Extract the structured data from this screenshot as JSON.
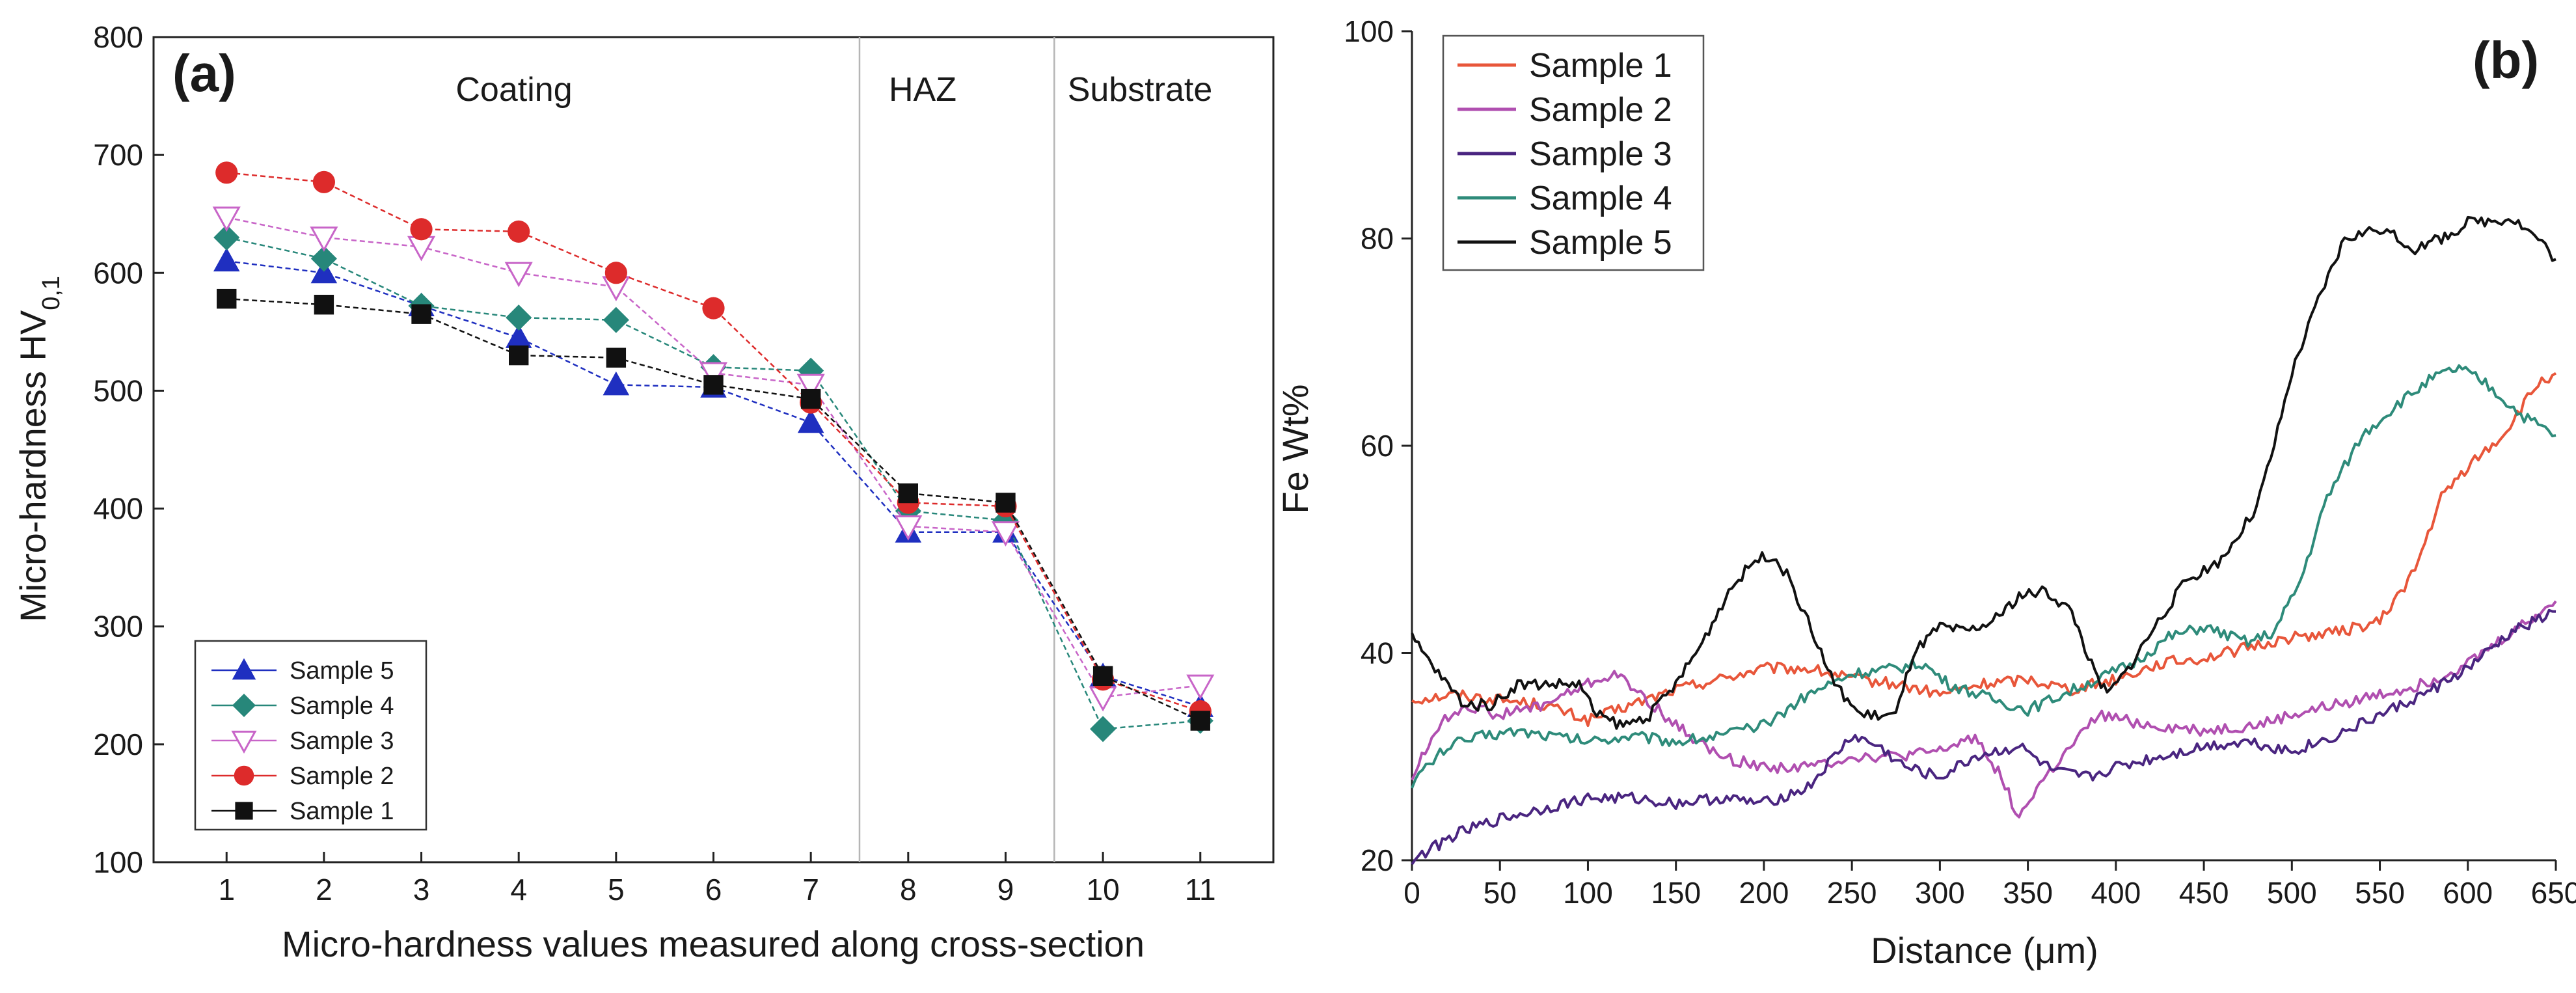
{
  "chart_data": [
    {
      "type": "line",
      "panel_label": "(a)",
      "xlabel": "Micro-hardness values measured along cross-section",
      "ylabel": "Micro-hardness HV",
      "ylabel_sub": "0,1",
      "x_ticks": [
        "1",
        "2",
        "3",
        "4",
        "5",
        "6",
        "7",
        "8",
        "9",
        "10",
        "11"
      ],
      "y_ticks": [
        "100",
        "200",
        "300",
        "400",
        "500",
        "600",
        "700",
        "800"
      ],
      "xlim": [
        0.25,
        11.75
      ],
      "ylim": [
        100,
        800
      ],
      "region_labels": [
        "Coating",
        "HAZ",
        "Substrate"
      ],
      "region_boundaries": [
        7.5,
        9.5
      ],
      "grid": false,
      "legend_position": "bottom-left",
      "x": [
        1,
        2,
        3,
        4,
        5,
        6,
        7,
        8,
        9,
        10,
        11
      ],
      "series": [
        {
          "name": "Sample 5",
          "marker": "triangle-up",
          "color": "#1f2fc0",
          "values": [
            610,
            600,
            572,
            545,
            505,
            503,
            473,
            380,
            380,
            258,
            232
          ]
        },
        {
          "name": "Sample 4",
          "marker": "diamond",
          "color": "#27877a",
          "values": [
            630,
            612,
            572,
            562,
            560,
            520,
            517,
            398,
            390,
            213,
            220
          ]
        },
        {
          "name": "Sample 3",
          "marker": "triangle-down-open",
          "color": "#c865c8",
          "values": [
            647,
            630,
            622,
            600,
            588,
            515,
            505,
            385,
            380,
            240,
            250
          ]
        },
        {
          "name": "Sample 2",
          "marker": "circle",
          "color": "#dd2b2b",
          "values": [
            685,
            677,
            637,
            635,
            600,
            570,
            490,
            405,
            402,
            255,
            228
          ]
        },
        {
          "name": "Sample 1",
          "marker": "square",
          "color": "#111111",
          "values": [
            578,
            573,
            565,
            530,
            528,
            505,
            493,
            413,
            405,
            258,
            220
          ]
        }
      ]
    },
    {
      "type": "line",
      "panel_label": "(b)",
      "xlabel": "Distance (μm)",
      "ylabel": "Fe Wt%",
      "x_ticks": [
        "0",
        "50",
        "100",
        "150",
        "200",
        "250",
        "300",
        "350",
        "400",
        "450",
        "500",
        "550",
        "600",
        "650"
      ],
      "y_ticks": [
        "20",
        "40",
        "60",
        "80",
        "100"
      ],
      "xlim": [
        0,
        650
      ],
      "ylim": [
        20,
        100
      ],
      "grid": false,
      "legend_position": "top-left",
      "series": [
        {
          "name": "Sample 1",
          "color": "#e8563a",
          "points": [
            [
              0,
              35.5
            ],
            [
              25,
              36
            ],
            [
              50,
              35.5
            ],
            [
              75,
              35
            ],
            [
              100,
              33.5
            ],
            [
              125,
              35
            ],
            [
              150,
              36.5
            ],
            [
              175,
              37.5
            ],
            [
              200,
              38.5
            ],
            [
              225,
              38.5
            ],
            [
              250,
              37.5
            ],
            [
              275,
              37
            ],
            [
              300,
              36
            ],
            [
              325,
              37
            ],
            [
              350,
              37.5
            ],
            [
              375,
              36.5
            ],
            [
              400,
              37.5
            ],
            [
              425,
              39
            ],
            [
              450,
              39.5
            ],
            [
              475,
              40.5
            ],
            [
              500,
              41.5
            ],
            [
              525,
              42
            ],
            [
              550,
              43
            ],
            [
              570,
              48
            ],
            [
              585,
              55
            ],
            [
              600,
              58
            ],
            [
              620,
              61
            ],
            [
              640,
              66
            ],
            [
              650,
              67
            ]
          ]
        },
        {
          "name": "Sample 2",
          "color": "#b04fb0",
          "points": [
            [
              0,
              28
            ],
            [
              15,
              33
            ],
            [
              30,
              35
            ],
            [
              50,
              34
            ],
            [
              75,
              35
            ],
            [
              100,
              37
            ],
            [
              115,
              38
            ],
            [
              130,
              36
            ],
            [
              150,
              33
            ],
            [
              175,
              30
            ],
            [
              200,
              29
            ],
            [
              225,
              29
            ],
            [
              250,
              30
            ],
            [
              275,
              30
            ],
            [
              300,
              30.5
            ],
            [
              320,
              32
            ],
            [
              335,
              28
            ],
            [
              345,
              24
            ],
            [
              355,
              27
            ],
            [
              370,
              30
            ],
            [
              390,
              34
            ],
            [
              420,
              33
            ],
            [
              450,
              32.5
            ],
            [
              480,
              33
            ],
            [
              500,
              34
            ],
            [
              525,
              35
            ],
            [
              550,
              36
            ],
            [
              575,
              37
            ],
            [
              600,
              39
            ],
            [
              625,
              42
            ],
            [
              650,
              45
            ]
          ]
        },
        {
          "name": "Sample 3",
          "color": "#4a2580",
          "points": [
            [
              0,
              20
            ],
            [
              25,
              22.5
            ],
            [
              50,
              24
            ],
            [
              75,
              25
            ],
            [
              100,
              26
            ],
            [
              125,
              26
            ],
            [
              150,
              25.5
            ],
            [
              175,
              26
            ],
            [
              200,
              25.5
            ],
            [
              225,
              27
            ],
            [
              250,
              32
            ],
            [
              265,
              31
            ],
            [
              280,
              29
            ],
            [
              300,
              28
            ],
            [
              320,
              30
            ],
            [
              345,
              31
            ],
            [
              365,
              28.5
            ],
            [
              385,
              28
            ],
            [
              400,
              29
            ],
            [
              425,
              30
            ],
            [
              450,
              31
            ],
            [
              475,
              31.5
            ],
            [
              500,
              30.5
            ],
            [
              525,
              32
            ],
            [
              550,
              34
            ],
            [
              575,
              36
            ],
            [
              600,
              38.5
            ],
            [
              625,
              42
            ],
            [
              650,
              44
            ]
          ]
        },
        {
          "name": "Sample 4",
          "color": "#2e8b7a",
          "points": [
            [
              0,
              27.5
            ],
            [
              20,
              31
            ],
            [
              40,
              32
            ],
            [
              60,
              32.5
            ],
            [
              80,
              32
            ],
            [
              100,
              31.5
            ],
            [
              125,
              32
            ],
            [
              150,
              31.5
            ],
            [
              175,
              32
            ],
            [
              200,
              33
            ],
            [
              225,
              36
            ],
            [
              250,
              38
            ],
            [
              275,
              38.5
            ],
            [
              290,
              39
            ],
            [
              305,
              37
            ],
            [
              330,
              35.5
            ],
            [
              350,
              34.5
            ],
            [
              370,
              36
            ],
            [
              390,
              37.5
            ],
            [
              410,
              39
            ],
            [
              430,
              41.5
            ],
            [
              450,
              42.5
            ],
            [
              475,
              41
            ],
            [
              490,
              42
            ],
            [
              505,
              47
            ],
            [
              520,
              55
            ],
            [
              540,
              61
            ],
            [
              560,
              64
            ],
            [
              580,
              66.5
            ],
            [
              595,
              67.5
            ],
            [
              610,
              66
            ],
            [
              630,
              63
            ],
            [
              650,
              61
            ]
          ]
        },
        {
          "name": "Sample 5",
          "color": "#111111",
          "points": [
            [
              0,
              41.5
            ],
            [
              15,
              38
            ],
            [
              30,
              35
            ],
            [
              45,
              35
            ],
            [
              60,
              37
            ],
            [
              80,
              37
            ],
            [
              95,
              37
            ],
            [
              105,
              34
            ],
            [
              120,
              33
            ],
            [
              135,
              34
            ],
            [
              150,
              37
            ],
            [
              165,
              41
            ],
            [
              180,
              46
            ],
            [
              195,
              49
            ],
            [
              205,
              49.5
            ],
            [
              215,
              47
            ],
            [
              225,
              43
            ],
            [
              240,
              37
            ],
            [
              255,
              34
            ],
            [
              275,
              34
            ],
            [
              285,
              40
            ],
            [
              300,
              42.5
            ],
            [
              315,
              42
            ],
            [
              330,
              43
            ],
            [
              345,
              45.5
            ],
            [
              360,
              46
            ],
            [
              375,
              44
            ],
            [
              388,
              38
            ],
            [
              395,
              36
            ],
            [
              405,
              38
            ],
            [
              420,
              42
            ],
            [
              440,
              47
            ],
            [
              460,
              49
            ],
            [
              480,
              54
            ],
            [
              490,
              60
            ],
            [
              500,
              67
            ],
            [
              515,
              74
            ],
            [
              530,
              80
            ],
            [
              550,
              81
            ],
            [
              570,
              79
            ],
            [
              585,
              80
            ],
            [
              600,
              81.5
            ],
            [
              625,
              82
            ],
            [
              640,
              80
            ],
            [
              650,
              78
            ]
          ]
        }
      ]
    }
  ]
}
